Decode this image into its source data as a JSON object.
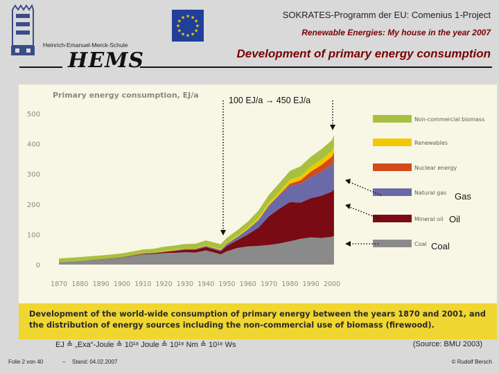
{
  "header": {
    "line1": "SOKRATES-Programm der EU: Comenius 1-Project",
    "line2": "Renewable Energies: My house in the year 2007",
    "title": "Development of primary energy consumption",
    "school_name": "Heinrich-Emanuel-Merck-Schule",
    "school_logo_text": "HEMS"
  },
  "annotations": {
    "growth": "100 EJ/a  →  450 EJ/a",
    "gas": "Gas",
    "oil": "Oil",
    "coal": "Coal"
  },
  "caption": "Development of the world-wide consumption of primary energy between the years 1870 and 2001, and the distribution of energy sources including the non-commercial use of biomass (firewood).",
  "unit_note": "EJ ≙ „Exa“-Joule ≙ 10¹⁸ Joule ≙ 10¹⁸ Nm ≙ 10¹⁸ Ws",
  "source": "(Source: BMU 2003)",
  "footer": {
    "slide": "Folie 2 von 40",
    "sep": "–",
    "date": "Stand: 04.02.2007",
    "author": "© Rudolf Bersch"
  },
  "colors": {
    "coal": "#8a8a8a",
    "mineral_oil": "#7a0a14",
    "natural_gas": "#6a6aa8",
    "nuclear": "#d44a1a",
    "renewables": "#f2c800",
    "biomass": "#a8c040",
    "eu_flag": "#1f3f99",
    "eu_stars": "#ffd700"
  },
  "chart_data": {
    "type": "area",
    "stacked": true,
    "title": "Primary energy consumption, EJ/a",
    "xlabel": "",
    "ylabel": "",
    "xlim": [
      1865,
      2003
    ],
    "ylim": [
      0,
      500
    ],
    "xticks": [
      1870,
      1880,
      1890,
      1900,
      1910,
      1920,
      1930,
      1940,
      1950,
      1960,
      1970,
      1980,
      1990,
      2000
    ],
    "yticks": [
      0,
      100,
      200,
      300,
      400,
      500
    ],
    "legend_position": "right",
    "x": [
      1870,
      1880,
      1890,
      1900,
      1910,
      1915,
      1920,
      1925,
      1930,
      1935,
      1940,
      1945,
      1947,
      1950,
      1955,
      1960,
      1965,
      1970,
      1975,
      1980,
      1985,
      1990,
      1995,
      2000,
      2001
    ],
    "series": [
      {
        "name": "Coal",
        "color": "#8a8a8a",
        "values": [
          8,
          12,
          17,
          23,
          34,
          35,
          38,
          39,
          41,
          40,
          47,
          38,
          34,
          44,
          55,
          60,
          62,
          65,
          70,
          77,
          85,
          90,
          88,
          92,
          95
        ]
      },
      {
        "name": "Mineral oil",
        "color": "#7a0a14",
        "values": [
          0,
          0,
          1,
          1,
          2,
          3,
          4,
          6,
          8,
          9,
          11,
          10,
          10,
          18,
          26,
          40,
          60,
          95,
          115,
          130,
          120,
          130,
          140,
          150,
          155
        ]
      },
      {
        "name": "Natural gas",
        "color": "#6a6aa8",
        "values": [
          0,
          0,
          0,
          0,
          0,
          0,
          1,
          2,
          3,
          3,
          4,
          4,
          4,
          7,
          10,
          17,
          25,
          35,
          45,
          55,
          62,
          70,
          80,
          90,
          95
        ]
      },
      {
        "name": "Nuclear energy",
        "color": "#d44a1a",
        "values": [
          0,
          0,
          0,
          0,
          0,
          0,
          0,
          0,
          0,
          0,
          0,
          0,
          0,
          0,
          0,
          0,
          0,
          1,
          2,
          6,
          12,
          18,
          22,
          25,
          26
        ]
      },
      {
        "name": "Renewables",
        "color": "#f2c800",
        "values": [
          0,
          0,
          0,
          0,
          1,
          1,
          2,
          2,
          2,
          2,
          3,
          3,
          3,
          4,
          5,
          6,
          8,
          9,
          10,
          12,
          14,
          16,
          18,
          20,
          21
        ]
      },
      {
        "name": "Non-commercial biomass",
        "color": "#a8c040",
        "values": [
          12,
          13,
          12,
          13,
          13,
          13,
          14,
          14,
          14,
          15,
          15,
          16,
          16,
          16,
          18,
          20,
          24,
          26,
          28,
          30,
          32,
          33,
          34,
          35,
          36
        ]
      }
    ],
    "legend": [
      "Non-commercial biomass",
      "Renewables",
      "Nuclear energy",
      "Natural gas",
      "Mineral oil",
      "Coal"
    ]
  }
}
